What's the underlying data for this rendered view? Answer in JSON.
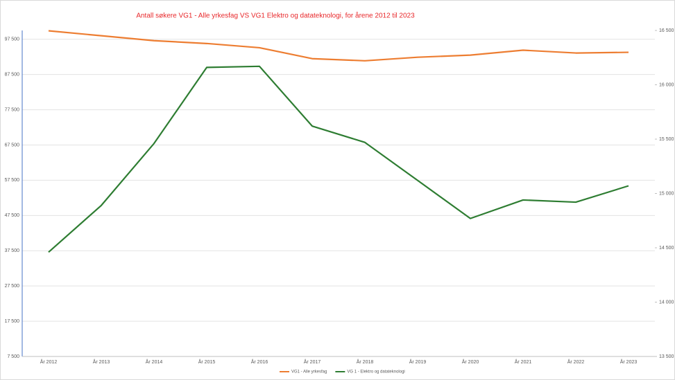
{
  "chart_data": {
    "type": "line",
    "title": "Antall søkere VG1 - Alle yrkesfag VS VG1 Elektro og datateknologi, for årene 2012 til 2023",
    "categories": [
      "År 2012",
      "År 2013",
      "År 2014",
      "År 2015",
      "År 2016",
      "År 2017",
      "År 2018",
      "År 2019",
      "År 2020",
      "År 2021",
      "År 2022",
      "År 2023"
    ],
    "series": [
      {
        "name": "VG1 - Alle yrkesfag",
        "color": "#ed7d31",
        "values": [
          99900,
          98500,
          97100,
          96300,
          95100,
          92000,
          91400,
          92400,
          93000,
          94400,
          93600,
          93800
        ]
      },
      {
        "name": "VG 1 - Elektro og datateknologi",
        "color": "#2e7d32",
        "axis": "y2",
        "values": [
          14460,
          14890,
          15460,
          16160,
          16170,
          15620,
          15470,
          15120,
          14770,
          14940,
          14920,
          15070
        ]
      }
    ],
    "ylim": [
      7500,
      100000
    ],
    "yticks": [
      {
        "value": 7500,
        "label": "7 500"
      },
      {
        "value": 17500,
        "label": "17 500"
      },
      {
        "value": 27500,
        "label": "27 500"
      },
      {
        "value": 37500,
        "label": "37 500"
      },
      {
        "value": 47500,
        "label": "47 500"
      },
      {
        "value": 57500,
        "label": "57 500"
      },
      {
        "value": 67500,
        "label": "67 500"
      },
      {
        "value": 77500,
        "label": "77 500"
      },
      {
        "value": 87500,
        "label": "87 500"
      },
      {
        "value": 97500,
        "label": "97 500"
      }
    ],
    "y2lim": [
      13500,
      16500
    ],
    "y2ticks": [
      {
        "value": 13500,
        "label": "13 500"
      },
      {
        "value": 14000,
        "label": "14 000"
      },
      {
        "value": 14500,
        "label": "14 500"
      },
      {
        "value": 15000,
        "label": "15 000"
      },
      {
        "value": 15500,
        "label": "15 500"
      },
      {
        "value": 16000,
        "label": "16 000"
      },
      {
        "value": 16500,
        "label": "16 500"
      }
    ],
    "grid": true,
    "legend": "bottom"
  }
}
